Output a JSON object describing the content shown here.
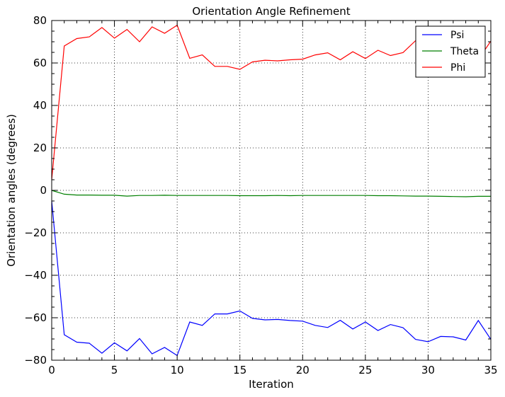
{
  "chart_data": {
    "type": "line",
    "title": "Orientation Angle Refinement",
    "xlabel": "Iteration",
    "ylabel": "Orientation angles (degrees)",
    "xlim": [
      0,
      35
    ],
    "ylim": [
      -80,
      80
    ],
    "xticks": [
      "0",
      "5",
      "10",
      "15",
      "20",
      "25",
      "30",
      "35"
    ],
    "yticks": [
      "80",
      "60",
      "40",
      "20",
      "0",
      "−20",
      "−40",
      "−60",
      "−80"
    ],
    "grid": true,
    "legend_position": "top-right",
    "x": [
      0,
      1,
      2,
      3,
      4,
      5,
      6,
      7,
      8,
      9,
      10,
      11,
      12,
      13,
      14,
      15,
      16,
      17,
      18,
      19,
      20,
      21,
      22,
      23,
      24,
      25,
      26,
      27,
      28,
      29,
      30,
      31,
      32,
      33,
      34,
      35
    ],
    "series": [
      {
        "name": "Psi",
        "color": "#0000ff",
        "values": [
          -5,
          -68,
          -71.5,
          -72,
          -76.7,
          -71.8,
          -75.6,
          -69.8,
          -77,
          -74,
          -77.8,
          -62,
          -63.6,
          -58.2,
          -58.2,
          -56.8,
          -60.3,
          -61,
          -60.8,
          -61.3,
          -61.6,
          -63.6,
          -64.6,
          -61.2,
          -65.3,
          -62,
          -66,
          -63.2,
          -64.7,
          -70.2,
          -71.3,
          -68.8,
          -69,
          -70.5,
          -61.3,
          -70.2
        ]
      },
      {
        "name": "Theta",
        "color": "#007f00",
        "values": [
          0,
          -1.8,
          -2.2,
          -2.2,
          -2.3,
          -2.3,
          -2.7,
          -2.4,
          -2.4,
          -2.3,
          -2.4,
          -2.4,
          -2.4,
          -2.4,
          -2.4,
          -2.5,
          -2.5,
          -2.5,
          -2.4,
          -2.5,
          -2.4,
          -2.4,
          -2.4,
          -2.4,
          -2.4,
          -2.4,
          -2.5,
          -2.5,
          -2.6,
          -2.7,
          -2.7,
          -2.8,
          -2.9,
          -3,
          -2.8,
          -2.8
        ]
      },
      {
        "name": "Phi",
        "color": "#ff0000",
        "values": [
          5,
          68,
          71.5,
          72.3,
          76.7,
          71.7,
          75.8,
          70,
          77,
          74,
          77.8,
          62.2,
          63.8,
          58.4,
          58.4,
          57,
          60.5,
          61.3,
          61,
          61.5,
          61.8,
          63.8,
          64.8,
          61.5,
          65.3,
          62.1,
          66,
          63.5,
          64.9,
          70.5,
          71.5,
          69,
          69.3,
          70.6,
          61.6,
          70.3
        ]
      }
    ]
  }
}
